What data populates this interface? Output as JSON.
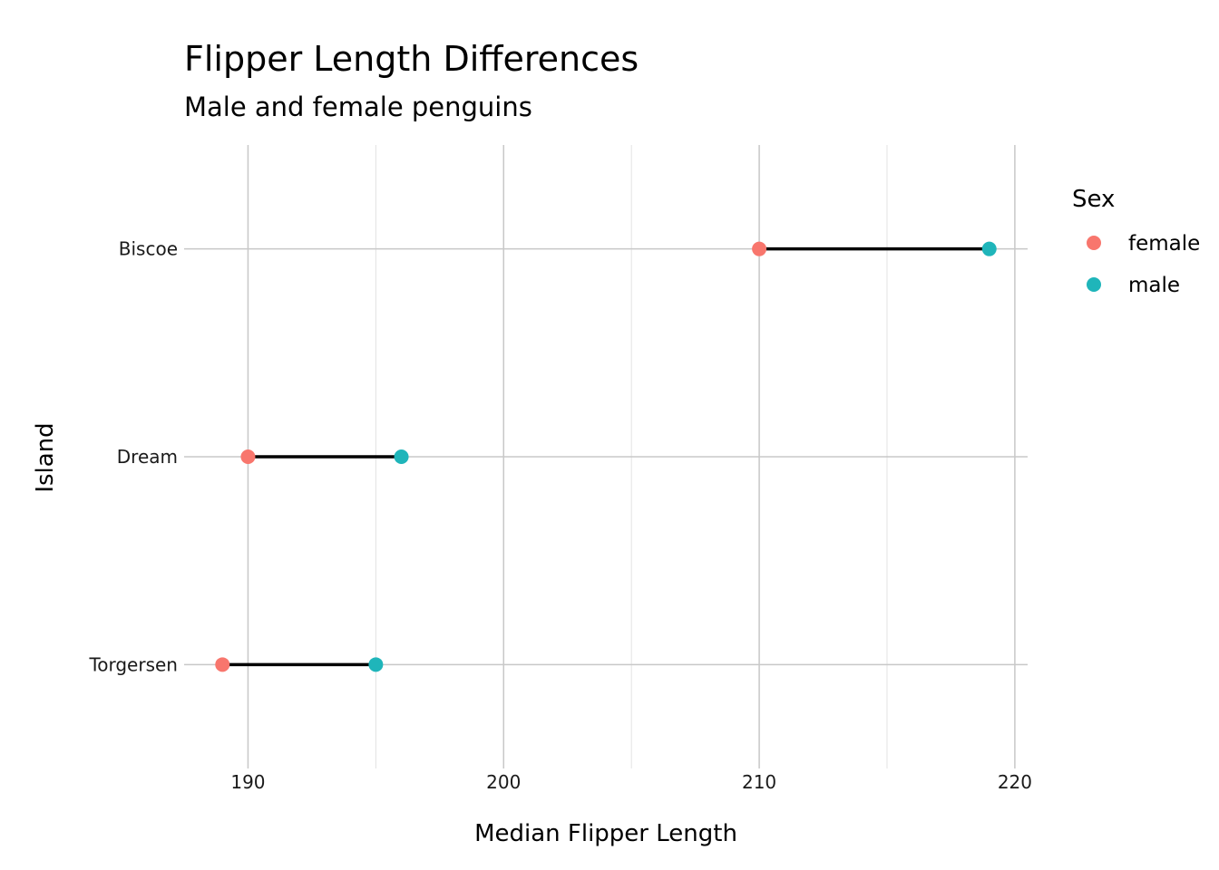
{
  "chart_data": {
    "type": "dumbbell",
    "title": "Flipper Length Differences",
    "subtitle": "Male and female penguins",
    "xlabel": "Median Flipper Length",
    "ylabel": "Island",
    "xlim": [
      187.5,
      220.5
    ],
    "x_ticks": [
      190,
      200,
      210,
      220
    ],
    "x_tick_labels": [
      "190",
      "200",
      "210",
      "220"
    ],
    "x_minor_ticks": [
      195,
      205,
      215
    ],
    "categories": [
      "Biscoe",
      "Dream",
      "Torgersen"
    ],
    "series": [
      {
        "name": "female",
        "color": "#F8766D",
        "values": [
          210,
          190,
          189
        ]
      },
      {
        "name": "male",
        "color": "#1FB5BA",
        "values": [
          219,
          196,
          195
        ]
      }
    ],
    "segment_color": "#000000",
    "grid": true,
    "legend": {
      "title": "Sex",
      "position": "right"
    }
  }
}
